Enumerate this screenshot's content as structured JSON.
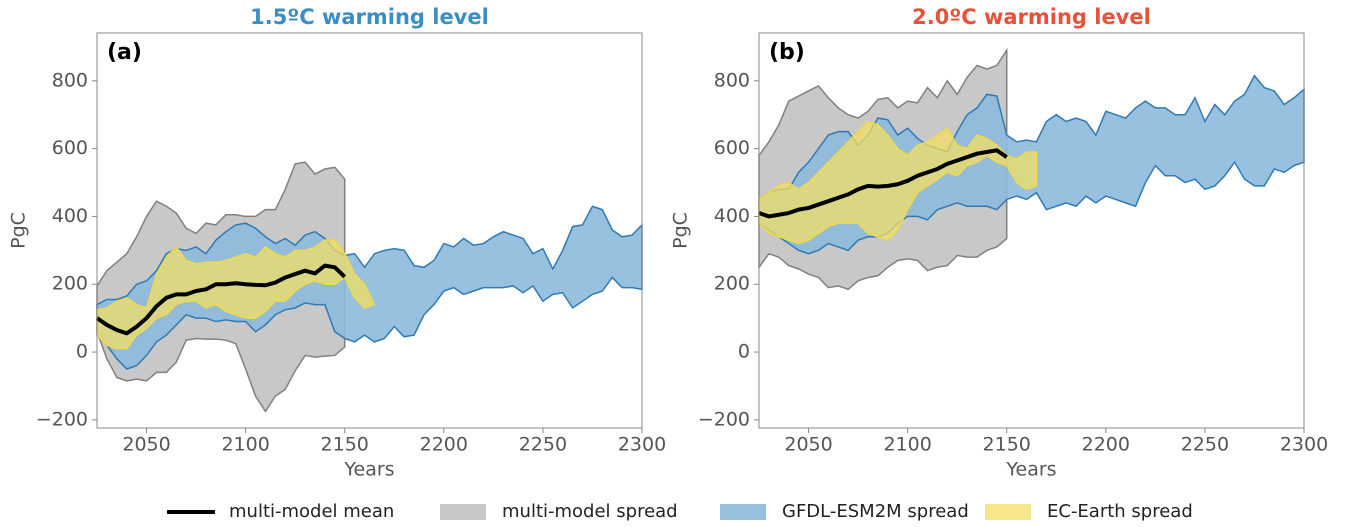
{
  "chart_data": [
    {
      "type": "band",
      "title": "1.5ºC warming level",
      "title_color": "#3a8ec4",
      "panel_label": "(a)",
      "xlabel": "Years",
      "ylabel": "PgC",
      "xlim": [
        2025,
        2300
      ],
      "ylim": [
        -224,
        941
      ],
      "xticks": [
        2050,
        2100,
        2150,
        2200,
        2250,
        2300
      ],
      "yticks": [
        {
          "value": -200,
          "label": "−200"
        },
        0,
        200,
        400,
        600,
        800
      ],
      "series": [
        {
          "name": "multi-model mean",
          "type": "line",
          "color": "#000000",
          "x": [
            2025,
            2030,
            2035,
            2040,
            2045,
            2050,
            2055,
            2060,
            2065,
            2070,
            2075,
            2080,
            2085,
            2090,
            2095,
            2100,
            2105,
            2110,
            2115,
            2120,
            2125,
            2130,
            2135,
            2140,
            2145,
            2150
          ],
          "values": [
            100,
            80,
            65,
            55,
            75,
            100,
            135,
            160,
            170,
            170,
            180,
            185,
            200,
            200,
            203,
            200,
            198,
            197,
            205,
            220,
            230,
            240,
            232,
            255,
            250,
            222
          ]
        },
        {
          "name": "multi-model spread",
          "type": "band",
          "color": "#c8c8c8",
          "edgecolor": "#808080",
          "x": [
            2025,
            2030,
            2035,
            2040,
            2045,
            2050,
            2055,
            2060,
            2065,
            2070,
            2075,
            2080,
            2085,
            2090,
            2095,
            2100,
            2105,
            2110,
            2115,
            2120,
            2125,
            2130,
            2135,
            2140,
            2145,
            2150
          ],
          "upper": [
            195,
            240,
            265,
            290,
            340,
            400,
            445,
            430,
            410,
            365,
            350,
            380,
            375,
            405,
            405,
            400,
            400,
            420,
            420,
            480,
            555,
            560,
            525,
            540,
            545,
            510
          ],
          "lower": [
            60,
            -20,
            -75,
            -85,
            -80,
            -85,
            -60,
            -60,
            -30,
            35,
            40,
            38,
            38,
            35,
            25,
            -50,
            -130,
            -175,
            -130,
            -110,
            -55,
            -10,
            -15,
            -12,
            -10,
            15
          ]
        },
        {
          "name": "GFDL-ESM2M spread",
          "type": "band",
          "color": "#8dbadc",
          "edgecolor": "#2f7ab5",
          "x": [
            2025,
            2030,
            2035,
            2040,
            2045,
            2050,
            2055,
            2060,
            2065,
            2070,
            2075,
            2080,
            2085,
            2090,
            2095,
            2100,
            2105,
            2110,
            2115,
            2120,
            2125,
            2130,
            2135,
            2140,
            2145,
            2150,
            2155,
            2160,
            2165,
            2170,
            2175,
            2180,
            2185,
            2190,
            2195,
            2200,
            2205,
            2210,
            2215,
            2220,
            2225,
            2230,
            2235,
            2240,
            2245,
            2250,
            2255,
            2260,
            2265,
            2270,
            2275,
            2280,
            2285,
            2290,
            2295,
            2300
          ],
          "upper": [
            140,
            155,
            155,
            165,
            200,
            210,
            240,
            290,
            305,
            300,
            310,
            290,
            330,
            355,
            375,
            380,
            365,
            340,
            320,
            335,
            315,
            345,
            355,
            335,
            300,
            285,
            290,
            250,
            290,
            300,
            305,
            300,
            255,
            250,
            270,
            320,
            310,
            335,
            315,
            320,
            340,
            355,
            345,
            335,
            290,
            305,
            245,
            300,
            370,
            375,
            430,
            420,
            360,
            340,
            345,
            375
          ],
          "lower": [
            50,
            20,
            -20,
            -50,
            -40,
            -10,
            30,
            50,
            80,
            110,
            100,
            100,
            90,
            95,
            90,
            90,
            60,
            80,
            110,
            125,
            130,
            145,
            140,
            140,
            60,
            40,
            30,
            50,
            30,
            40,
            75,
            45,
            50,
            110,
            140,
            180,
            190,
            170,
            180,
            190,
            190,
            190,
            195,
            175,
            195,
            150,
            170,
            175,
            130,
            150,
            170,
            180,
            220,
            190,
            190,
            185
          ]
        },
        {
          "name": "EC-Earth spread",
          "type": "band",
          "color": "#f1df63",
          "edgecolor": "#f1d94a",
          "x": [
            2025,
            2030,
            2035,
            2040,
            2045,
            2050,
            2055,
            2060,
            2065,
            2070,
            2075,
            2080,
            2085,
            2090,
            2095,
            2100,
            2105,
            2110,
            2115,
            2120,
            2125,
            2130,
            2135,
            2140,
            2145,
            2150,
            2155,
            2160,
            2165
          ],
          "upper": [
            125,
            130,
            150,
            160,
            140,
            130,
            230,
            280,
            310,
            270,
            260,
            265,
            265,
            270,
            280,
            290,
            280,
            310,
            290,
            280,
            300,
            300,
            310,
            330,
            330,
            290,
            230,
            200,
            140
          ],
          "lower": [
            50,
            20,
            10,
            10,
            50,
            70,
            100,
            110,
            140,
            150,
            150,
            130,
            140,
            120,
            110,
            100,
            100,
            120,
            150,
            150,
            180,
            200,
            210,
            200,
            200,
            220,
            160,
            130,
            140
          ]
        }
      ]
    },
    {
      "type": "band",
      "title": "2.0ºC warming level",
      "title_color": "#e4533a",
      "panel_label": "(b)",
      "xlabel": "Years",
      "ylabel": "PgC",
      "xlim": [
        2025,
        2300
      ],
      "ylim": [
        -224,
        941
      ],
      "xticks": [
        2050,
        2100,
        2150,
        2200,
        2250,
        2300
      ],
      "yticks": [
        {
          "value": -200,
          "label": "−200"
        },
        0,
        200,
        400,
        600,
        800
      ],
      "series": [
        {
          "type": "line",
          "color": "#000000",
          "x": [
            2025,
            2030,
            2035,
            2040,
            2045,
            2050,
            2055,
            2060,
            2065,
            2070,
            2075,
            2080,
            2085,
            2090,
            2095,
            2100,
            2105,
            2110,
            2115,
            2120,
            2125,
            2130,
            2135,
            2140,
            2145,
            2150
          ],
          "values": [
            410,
            400,
            405,
            410,
            420,
            425,
            435,
            445,
            455,
            465,
            480,
            490,
            488,
            490,
            495,
            505,
            520,
            530,
            540,
            555,
            565,
            575,
            585,
            590,
            595,
            575
          ]
        },
        {
          "type": "band",
          "color": "#c8c8c8",
          "edgecolor": "#808080",
          "x": [
            2025,
            2030,
            2035,
            2040,
            2045,
            2050,
            2055,
            2060,
            2065,
            2070,
            2075,
            2080,
            2085,
            2090,
            2095,
            2100,
            2105,
            2110,
            2115,
            2120,
            2125,
            2130,
            2135,
            2140,
            2145,
            2150
          ],
          "upper": [
            580,
            620,
            670,
            740,
            755,
            770,
            785,
            750,
            720,
            700,
            690,
            710,
            745,
            750,
            720,
            740,
            735,
            780,
            750,
            800,
            760,
            810,
            845,
            835,
            845,
            890
          ],
          "lower": [
            250,
            290,
            280,
            255,
            245,
            230,
            220,
            190,
            195,
            185,
            210,
            220,
            225,
            250,
            270,
            275,
            270,
            240,
            250,
            255,
            285,
            280,
            280,
            300,
            310,
            335
          ]
        },
        {
          "type": "band",
          "color": "#8dbadc",
          "edgecolor": "#2f7ab5",
          "x": [
            2025,
            2030,
            2035,
            2040,
            2045,
            2050,
            2055,
            2060,
            2065,
            2070,
            2075,
            2080,
            2085,
            2090,
            2095,
            2100,
            2105,
            2110,
            2115,
            2120,
            2125,
            2130,
            2135,
            2140,
            2145,
            2150,
            2155,
            2160,
            2165,
            2170,
            2175,
            2180,
            2185,
            2190,
            2195,
            2200,
            2205,
            2210,
            2215,
            2220,
            2225,
            2230,
            2235,
            2240,
            2245,
            2250,
            2255,
            2260,
            2265,
            2270,
            2275,
            2280,
            2285,
            2290,
            2295,
            2300
          ],
          "upper": [
            450,
            470,
            480,
            480,
            530,
            560,
            600,
            640,
            650,
            650,
            610,
            640,
            690,
            685,
            640,
            660,
            630,
            610,
            600,
            590,
            650,
            700,
            720,
            760,
            755,
            640,
            620,
            625,
            620,
            680,
            700,
            680,
            690,
            680,
            640,
            710,
            700,
            690,
            720,
            740,
            720,
            720,
            700,
            700,
            750,
            680,
            730,
            700,
            740,
            760,
            815,
            780,
            770,
            730,
            750,
            775
          ],
          "lower": [
            380,
            360,
            340,
            320,
            300,
            290,
            300,
            320,
            310,
            300,
            330,
            340,
            340,
            350,
            380,
            400,
            400,
            390,
            420,
            430,
            440,
            430,
            430,
            430,
            420,
            450,
            460,
            450,
            470,
            420,
            430,
            440,
            430,
            460,
            440,
            460,
            450,
            440,
            430,
            500,
            550,
            520,
            520,
            500,
            510,
            480,
            490,
            520,
            560,
            510,
            490,
            490,
            540,
            530,
            550,
            560
          ]
        },
        {
          "type": "band",
          "color": "#f1df63",
          "edgecolor": "#f1d94a",
          "x": [
            2025,
            2030,
            2035,
            2040,
            2045,
            2050,
            2055,
            2060,
            2065,
            2070,
            2075,
            2080,
            2085,
            2090,
            2095,
            2100,
            2105,
            2110,
            2115,
            2120,
            2125,
            2130,
            2135,
            2140,
            2145,
            2150,
            2155,
            2160,
            2165
          ],
          "upper": [
            450,
            470,
            490,
            500,
            480,
            500,
            530,
            560,
            590,
            620,
            650,
            680,
            670,
            640,
            600,
            580,
            610,
            620,
            640,
            660,
            610,
            600,
            640,
            630,
            610,
            580,
            570,
            590,
            590
          ],
          "lower": [
            380,
            350,
            340,
            330,
            320,
            330,
            350,
            370,
            380,
            380,
            380,
            350,
            340,
            330,
            360,
            420,
            470,
            490,
            510,
            530,
            520,
            550,
            560,
            580,
            560,
            550,
            500,
            480,
            490
          ]
        }
      ]
    }
  ]
}
